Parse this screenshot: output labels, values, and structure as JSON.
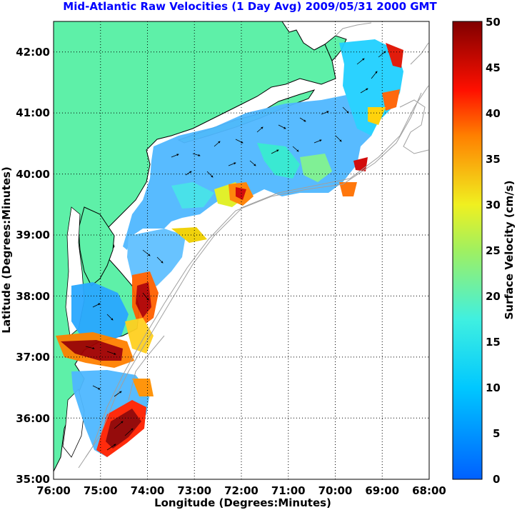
{
  "title": "Mid-Atlantic Raw Velocities (1 Day Avg) 2009/05/31 2000 GMT",
  "title_color": "#0000ff",
  "xlabel": "Longitude (Degrees:Minutes)",
  "ylabel": "Latitude (Degrees:Minutes)",
  "colorbar_label": "Surface Velocity (cm/s)",
  "x_ticks": [
    "76:00",
    "75:00",
    "74:00",
    "73:00",
    "72:00",
    "71:00",
    "70:00",
    "69:00",
    "68:00"
  ],
  "y_ticks": [
    "42:00",
    "41:00",
    "40:00",
    "39:00",
    "38:00",
    "37:00",
    "36:00",
    "35:00"
  ],
  "colorbar_ticks": [
    "50",
    "45",
    "40",
    "35",
    "30",
    "25",
    "20",
    "15",
    "10",
    "5",
    "0"
  ],
  "colors": {
    "land": "#5ef0a8",
    "ocean": "#ffffff",
    "coast": "#000000",
    "bathymetry": "#a0a0a0",
    "velocity_low": "#1e78ff",
    "velocity_mid": "#20d8ff",
    "velocity_high": "#a00000"
  },
  "map": {
    "lon_range": [
      -76,
      -68
    ],
    "lat_range": [
      35,
      42.5
    ],
    "velocity_range_cm_s": [
      0,
      50
    ],
    "grid": "dotted"
  }
}
